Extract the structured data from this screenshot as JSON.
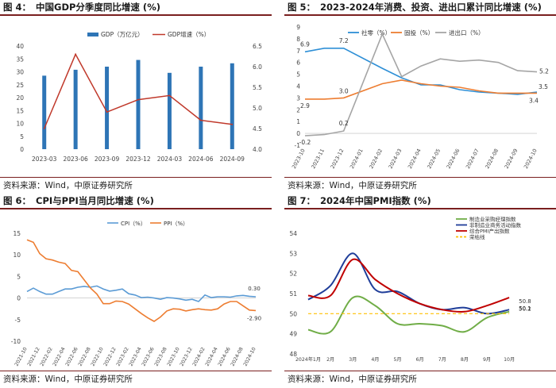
{
  "source_label": "资料来源：Wind，中原证券研究所",
  "colors": {
    "frame": "#7a1f1f",
    "bar": "#2e75b6",
    "red": "#c0392b",
    "blue": "#2e8fd6",
    "orange": "#ed7d31",
    "gray": "#a5a5a5",
    "green": "#70ad47",
    "navy": "#1f3d99",
    "darkred": "#c00000",
    "yellow": "#ffc000",
    "cpi": "#5b9bd5"
  },
  "panels": [
    {
      "id": "fig4",
      "prefix": "图 4：",
      "title": "中国GDP分季度同比增速 (%)"
    },
    {
      "id": "fig5",
      "prefix": "图 5：",
      "title": "2023-2024年消费、投资、进出口累计同比增速 (%)"
    },
    {
      "id": "fig6",
      "prefix": "图 6：",
      "title": "CPI与PPI当月同比增速 (%)"
    },
    {
      "id": "fig7",
      "prefix": "图 7：",
      "title": "2024年中国PMI指数 (%)"
    }
  ],
  "chart_data": [
    {
      "id": "fig4",
      "type": "bar+line",
      "categories": [
        "2023-03",
        "2023-06",
        "2023-09",
        "2023-12",
        "2024-03",
        "2024-06",
        "2024-09"
      ],
      "series": [
        {
          "name": "GDP（万亿元）",
          "type": "bar",
          "axis": "left",
          "values": [
            28.5,
            30.8,
            32.0,
            34.6,
            29.6,
            32.0,
            33.3
          ]
        },
        {
          "name": "GDP增速（%）",
          "type": "line",
          "axis": "right",
          "values": [
            4.5,
            6.3,
            4.9,
            5.2,
            5.3,
            4.7,
            4.6
          ]
        }
      ],
      "y_left": {
        "min": 0,
        "max": 40,
        "ticks": [
          "0",
          "5",
          "10",
          "15",
          "20",
          "25",
          "30",
          "35",
          "40"
        ]
      },
      "y_right": {
        "min": 4.0,
        "max": 6.5,
        "ticks": [
          "4.0",
          "4.5",
          "5.0",
          "5.5",
          "6.0",
          "6.5"
        ]
      },
      "legend": "top"
    },
    {
      "id": "fig5",
      "type": "line",
      "categories": [
        "2023-10",
        "2023-11",
        "2023-12",
        "2024-01",
        "2024-02",
        "2024-03",
        "2024-04",
        "2024-05",
        "2024-06",
        "2024-07",
        "2024-08",
        "2024-09",
        "2024-10"
      ],
      "series": [
        {
          "name": "社零（%）",
          "values": [
            6.9,
            7.2,
            7.2,
            null,
            5.5,
            4.7,
            4.1,
            4.1,
            3.7,
            3.5,
            3.4,
            3.3,
            3.5
          ]
        },
        {
          "name": "固投（%）",
          "values": [
            2.9,
            2.9,
            3.0,
            null,
            4.2,
            4.5,
            4.2,
            4.0,
            3.9,
            3.6,
            3.4,
            3.4,
            3.4
          ]
        },
        {
          "name": "进出口（%）",
          "values": [
            -0.2,
            -0.1,
            0.2,
            null,
            8.4,
            4.8,
            5.7,
            6.3,
            6.1,
            6.2,
            6.0,
            5.3,
            5.2
          ]
        }
      ],
      "data_labels": [
        {
          "series": 0,
          "index": 0,
          "text": "6.9"
        },
        {
          "series": 0,
          "index": 2,
          "text": "7.2"
        },
        {
          "series": 1,
          "index": 0,
          "text": "2.9"
        },
        {
          "series": 1,
          "index": 2,
          "text": "3.0"
        },
        {
          "series": 2,
          "index": 0,
          "text": "-0.2"
        },
        {
          "series": 2,
          "index": 2,
          "text": "0.2"
        },
        {
          "series": 2,
          "index": 12,
          "text": "5.2"
        },
        {
          "series": 0,
          "index": 12,
          "text": "3.5"
        },
        {
          "series": 1,
          "index": 12,
          "text": "3.4"
        }
      ],
      "y": {
        "min": -1,
        "max": 9,
        "ticks": [
          "-1",
          "0",
          "1",
          "2",
          "3",
          "4",
          "5",
          "6",
          "7",
          "8",
          "9"
        ]
      },
      "legend": "top"
    },
    {
      "id": "fig6",
      "type": "line",
      "categories": [
        "2021-10",
        "2021-11",
        "2021-12",
        "2022-01",
        "2022-02",
        "2022-03",
        "2022-04",
        "2022-05",
        "2022-06",
        "2022-07",
        "2022-08",
        "2022-09",
        "2022-10",
        "2022-11",
        "2022-12",
        "2023-01",
        "2023-02",
        "2023-03",
        "2023-04",
        "2023-05",
        "2023-06",
        "2023-07",
        "2023-08",
        "2023-09",
        "2023-10",
        "2023-11",
        "2023-12",
        "2024-01",
        "2024-02",
        "2024-03",
        "2024-04",
        "2024-05",
        "2024-06",
        "2024-07",
        "2024-08",
        "2024-09",
        "2024-10"
      ],
      "tick_labels": [
        "2021-10",
        "2021-12",
        "2022-02",
        "2022-04",
        "2022-06",
        "2022-08",
        "2022-10",
        "2022-12",
        "2023-02",
        "2023-04",
        "2023-06",
        "2023-08",
        "2023-10",
        "2023-12",
        "2024-02",
        "2024-04",
        "2024-06",
        "2024-08",
        "2024-10"
      ],
      "series": [
        {
          "name": "CPI（%）",
          "values": [
            1.5,
            2.3,
            1.5,
            0.9,
            0.9,
            1.5,
            2.1,
            2.1,
            2.5,
            2.7,
            2.5,
            2.8,
            2.1,
            1.6,
            1.8,
            2.1,
            1.0,
            0.7,
            0.1,
            0.2,
            0.0,
            -0.3,
            0.1,
            0.0,
            -0.2,
            -0.5,
            -0.3,
            -0.8,
            0.7,
            0.1,
            0.3,
            0.3,
            0.2,
            0.5,
            0.6,
            0.4,
            0.3
          ]
        },
        {
          "name": "PPI（%）",
          "values": [
            13.5,
            12.9,
            10.3,
            9.1,
            8.8,
            8.3,
            8.0,
            6.4,
            6.1,
            4.2,
            2.3,
            0.9,
            -1.3,
            -1.3,
            -0.7,
            -0.8,
            -1.4,
            -2.5,
            -3.6,
            -4.6,
            -5.4,
            -4.4,
            -3.0,
            -2.5,
            -2.6,
            -3.0,
            -2.7,
            -2.5,
            -2.7,
            -2.8,
            -2.5,
            -1.4,
            -0.8,
            -0.8,
            -1.8,
            -2.8,
            -2.9
          ]
        }
      ],
      "data_labels": [
        {
          "series": 0,
          "index": 36,
          "text": "0.30"
        },
        {
          "series": 1,
          "index": 36,
          "text": "-2.90"
        }
      ],
      "y": {
        "min": -10,
        "max": 15,
        "ticks": [
          "-10",
          "-5",
          "0",
          "5",
          "10",
          "15"
        ]
      },
      "legend": "top"
    },
    {
      "id": "fig7",
      "type": "line",
      "categories": [
        "2024年1月",
        "2月",
        "3月",
        "4月",
        "5月",
        "6月",
        "7月",
        "8月",
        "9月",
        "10月"
      ],
      "series": [
        {
          "name": "制造业采购经理指数",
          "values": [
            49.2,
            49.1,
            50.8,
            50.4,
            49.5,
            49.5,
            49.4,
            49.1,
            49.8,
            50.1
          ]
        },
        {
          "name": "非制造业商务活动指数",
          "values": [
            50.7,
            51.4,
            53.0,
            51.2,
            51.1,
            50.5,
            50.2,
            50.3,
            50.0,
            50.2
          ]
        },
        {
          "name": "综合PMI产出指数",
          "values": [
            50.9,
            50.9,
            52.7,
            51.7,
            51.0,
            50.5,
            50.2,
            50.1,
            50.4,
            50.8
          ]
        },
        {
          "name": "荣枯线",
          "values": [
            50,
            50,
            50,
            50,
            50,
            50,
            50,
            50,
            50,
            50
          ],
          "dashed": true
        }
      ],
      "data_labels": [
        {
          "series": 2,
          "index": 9,
          "text": "50.8"
        },
        {
          "series": 1,
          "index": 9,
          "text": "50.2"
        },
        {
          "series": 0,
          "index": 9,
          "text": "50.1"
        }
      ],
      "y": {
        "min": 48,
        "max": 54,
        "ticks": [
          "48",
          "49",
          "50",
          "51",
          "52",
          "53",
          "54"
        ]
      },
      "legend": "top-right"
    }
  ]
}
